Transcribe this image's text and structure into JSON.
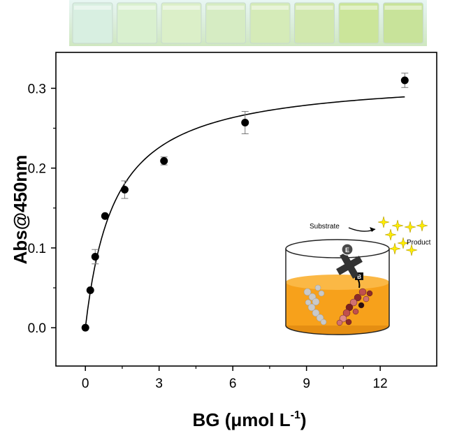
{
  "chart_data": {
    "type": "scatter",
    "title": "",
    "xlabel": "BG (μmol L-1)",
    "xlabel_parts": {
      "main": "BG (",
      "mu": "μ",
      "rest": "mol L",
      "sup": "-1",
      "close": ")"
    },
    "ylabel": "Abs@450nm",
    "xlim": [
      -1.2,
      14.3
    ],
    "ylim": [
      -0.048,
      0.345
    ],
    "xticks": [
      0,
      3,
      6,
      9,
      12
    ],
    "yticks": [
      0.0,
      0.1,
      0.2,
      0.3
    ],
    "ytick_labels": [
      "0.0",
      "0.1",
      "0.2",
      "0.3"
    ],
    "grid": false,
    "series": [
      {
        "points": [
          {
            "x": 0,
            "y": 0.0,
            "err": 0.0
          },
          {
            "x": 0.2,
            "y": 0.047,
            "err": 0.0
          },
          {
            "x": 0.4,
            "y": 0.089,
            "err": 0.009
          },
          {
            "x": 0.8,
            "y": 0.14,
            "err": 0.0
          },
          {
            "x": 1.6,
            "y": 0.173,
            "err": 0.011
          },
          {
            "x": 3.2,
            "y": 0.209,
            "err": 0.005
          },
          {
            "x": 6.5,
            "y": 0.257,
            "err": 0.014
          },
          {
            "x": 13.0,
            "y": 0.31,
            "err": 0.009
          }
        ],
        "marker_color": "#000000"
      }
    ],
    "fit_curve": {
      "model": "hyperbolic",
      "ymax": 0.316,
      "k": 1.2,
      "x_range": [
        0,
        13.0
      ],
      "color": "#000000"
    }
  },
  "inset": {
    "substrate_label": "Substrate",
    "product_label": "Product",
    "enzyme_label": "E",
    "binder_label": "B",
    "liquid_color": "#f7a11b",
    "star_color": "#ffee00"
  },
  "vials": {
    "colors": [
      "#d8efe1",
      "#d9f0cf",
      "#dbefc8",
      "#d6ecc3",
      "#d5ebb8",
      "#d1e8ae",
      "#cbe59a",
      "#c8e39a"
    ]
  }
}
